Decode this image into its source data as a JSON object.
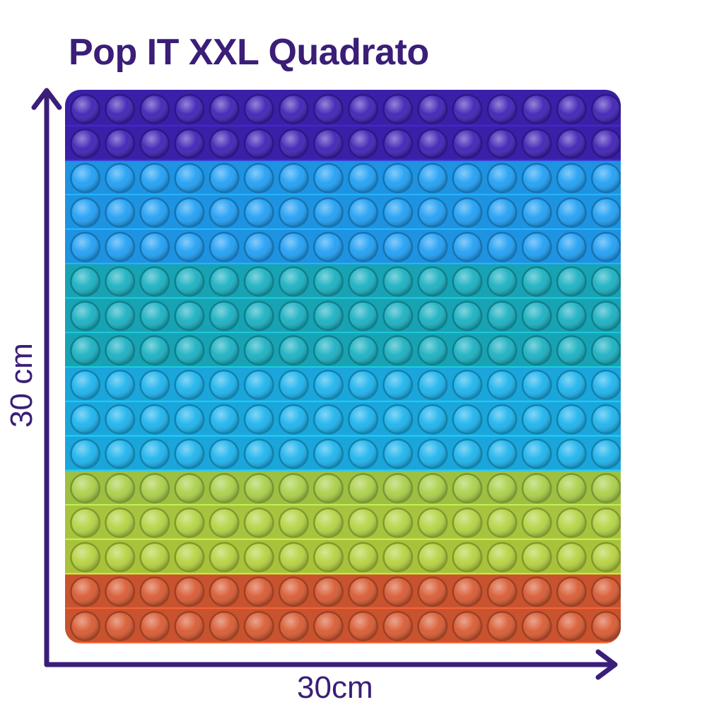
{
  "title": "Pop IT XXL Quadrato",
  "dimensions": {
    "height_label": "30 cm",
    "width_label": "30cm"
  },
  "toy": {
    "rows": 16,
    "columns": 16,
    "row_colors": [
      "#3a1fa8",
      "#3a1fa8",
      "#1e93e2",
      "#1e93e2",
      "#1e93e2",
      "#17a3b3",
      "#17a3b3",
      "#17a3b3",
      "#1aa6db",
      "#1aa6db",
      "#1aa6db",
      "#9dc043",
      "#a6c43e",
      "#a8c23a",
      "#c8532e",
      "#c8532e"
    ],
    "accent_color": "#3a1e78"
  }
}
